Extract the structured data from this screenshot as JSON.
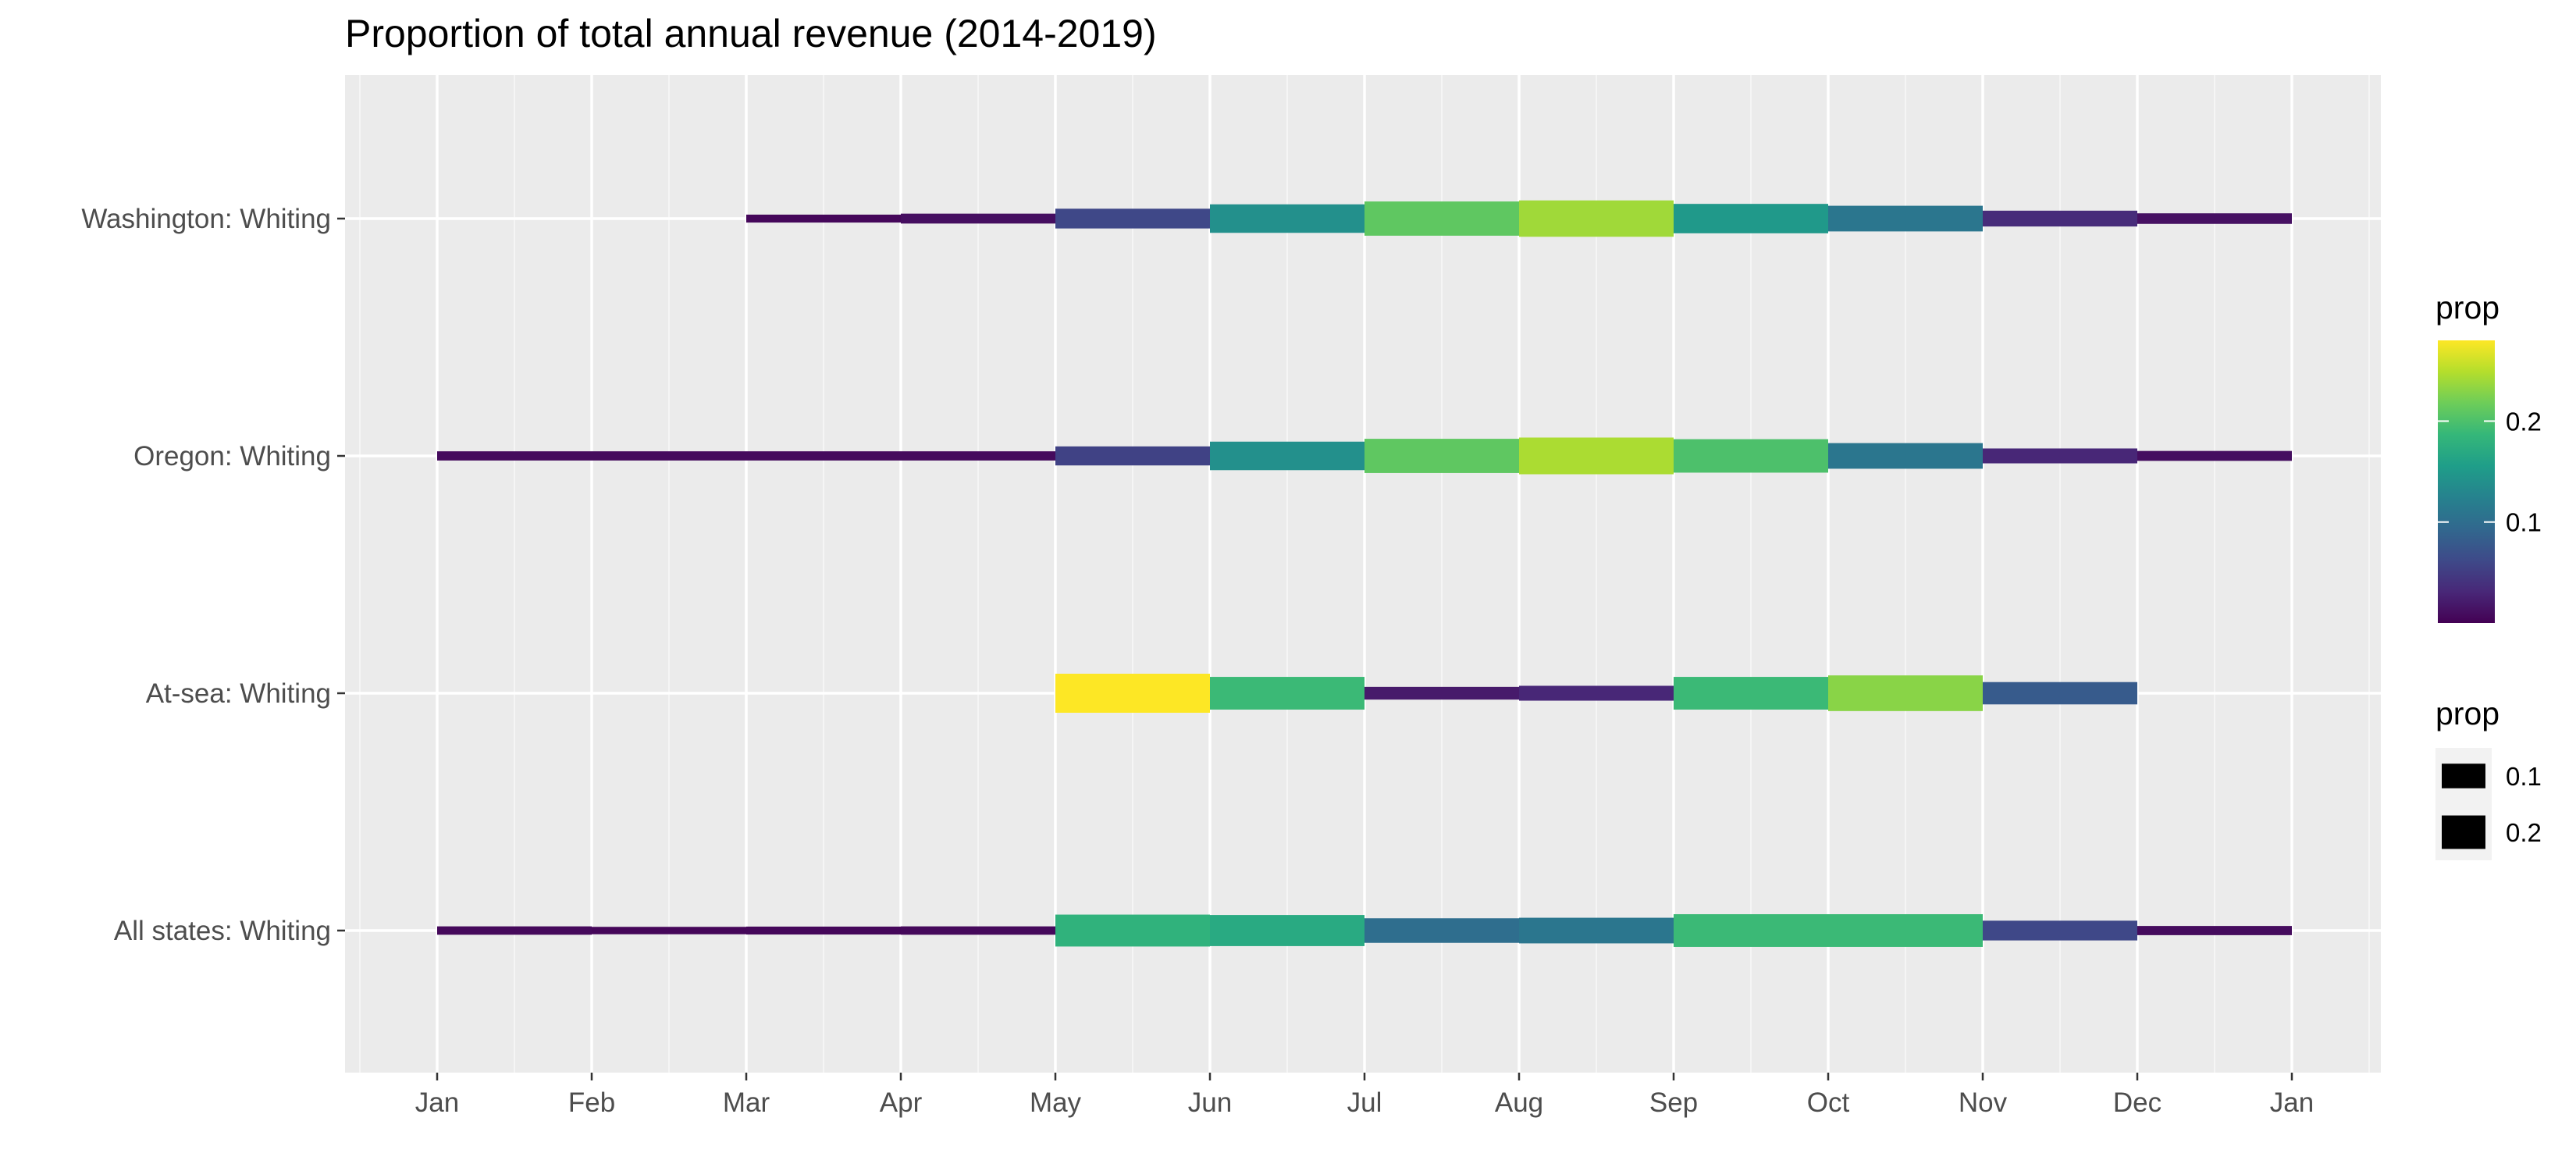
{
  "chart_data": {
    "type": "segment",
    "title": "Proportion of total annual revenue (2014-2019)",
    "xlabel": "",
    "ylabel": "",
    "x_ticks": [
      "Jan",
      "Feb",
      "Mar",
      "Apr",
      "May",
      "Jun",
      "Jul",
      "Aug",
      "Sep",
      "Oct",
      "Nov",
      "Dec",
      "Jan"
    ],
    "categories": [
      "Washington: Whiting",
      "Oregon: Whiting",
      "At-sea: Whiting",
      "All states: Whiting"
    ],
    "series": [
      {
        "name": "Washington: Whiting",
        "segments": [
          {
            "start": 3,
            "end": 4,
            "prop": 0.005
          },
          {
            "start": 4,
            "end": 5,
            "prop": 0.01
          },
          {
            "start": 5,
            "end": 6,
            "prop": 0.06
          },
          {
            "start": 6,
            "end": 7,
            "prop": 0.14
          },
          {
            "start": 7,
            "end": 8,
            "prop": 0.21
          },
          {
            "start": 8,
            "end": 9,
            "prop": 0.24
          },
          {
            "start": 9,
            "end": 10,
            "prop": 0.15
          },
          {
            "start": 10,
            "end": 11,
            "prop": 0.11
          },
          {
            "start": 11,
            "end": 12,
            "prop": 0.035
          },
          {
            "start": 12,
            "end": 13,
            "prop": 0.012
          }
        ]
      },
      {
        "name": "Oregon: Whiting",
        "segments": [
          {
            "start": 1,
            "end": 2,
            "prop": 0.008
          },
          {
            "start": 2,
            "end": 3,
            "prop": 0.008
          },
          {
            "start": 3,
            "end": 4,
            "prop": 0.008
          },
          {
            "start": 4,
            "end": 5,
            "prop": 0.008
          },
          {
            "start": 5,
            "end": 6,
            "prop": 0.055
          },
          {
            "start": 6,
            "end": 7,
            "prop": 0.14
          },
          {
            "start": 7,
            "end": 8,
            "prop": 0.21
          },
          {
            "start": 8,
            "end": 9,
            "prop": 0.245
          },
          {
            "start": 9,
            "end": 10,
            "prop": 0.2
          },
          {
            "start": 10,
            "end": 11,
            "prop": 0.11
          },
          {
            "start": 11,
            "end": 12,
            "prop": 0.03
          },
          {
            "start": 12,
            "end": 13,
            "prop": 0.01
          }
        ]
      },
      {
        "name": "At-sea: Whiting",
        "segments": [
          {
            "start": 5,
            "end": 6,
            "prop": 0.28
          },
          {
            "start": 6,
            "end": 7,
            "prop": 0.19
          },
          {
            "start": 7,
            "end": 8,
            "prop": 0.02
          },
          {
            "start": 8,
            "end": 9,
            "prop": 0.03
          },
          {
            "start": 9,
            "end": 10,
            "prop": 0.19
          },
          {
            "start": 10,
            "end": 11,
            "prop": 0.23
          },
          {
            "start": 11,
            "end": 12,
            "prop": 0.08
          }
        ]
      },
      {
        "name": "All states: Whiting",
        "segments": [
          {
            "start": 1,
            "end": 2,
            "prop": 0.006
          },
          {
            "start": 2,
            "end": 3,
            "prop": 0.004
          },
          {
            "start": 3,
            "end": 4,
            "prop": 0.005
          },
          {
            "start": 4,
            "end": 5,
            "prop": 0.006
          },
          {
            "start": 5,
            "end": 6,
            "prop": 0.18
          },
          {
            "start": 6,
            "end": 7,
            "prop": 0.17
          },
          {
            "start": 7,
            "end": 8,
            "prop": 0.1
          },
          {
            "start": 8,
            "end": 9,
            "prop": 0.11
          },
          {
            "start": 9,
            "end": 10,
            "prop": 0.19
          },
          {
            "start": 10,
            "end": 11,
            "prop": 0.19
          },
          {
            "start": 11,
            "end": 12,
            "prop": 0.06
          },
          {
            "start": 12,
            "end": 13,
            "prop": 0.008
          }
        ]
      }
    ],
    "color_scale": {
      "name": "viridis",
      "domain": [
        0,
        0.28
      ],
      "stops": [
        "#440154",
        "#482878",
        "#3E4A89",
        "#31688E",
        "#26828E",
        "#1F9E89",
        "#35B779",
        "#6DCD59",
        "#B4DE2C",
        "#FDE725"
      ]
    },
    "size_scale": {
      "domain": [
        0,
        0.28
      ]
    },
    "legends": {
      "color": {
        "title": "prop",
        "labels": [
          "0.1",
          "0.2"
        ],
        "values": [
          0.1,
          0.2
        ]
      },
      "size": {
        "title": "prop",
        "labels": [
          "0.1",
          "0.2"
        ],
        "values": [
          0.1,
          0.2
        ]
      }
    },
    "grid": true,
    "legend_position": "right"
  }
}
